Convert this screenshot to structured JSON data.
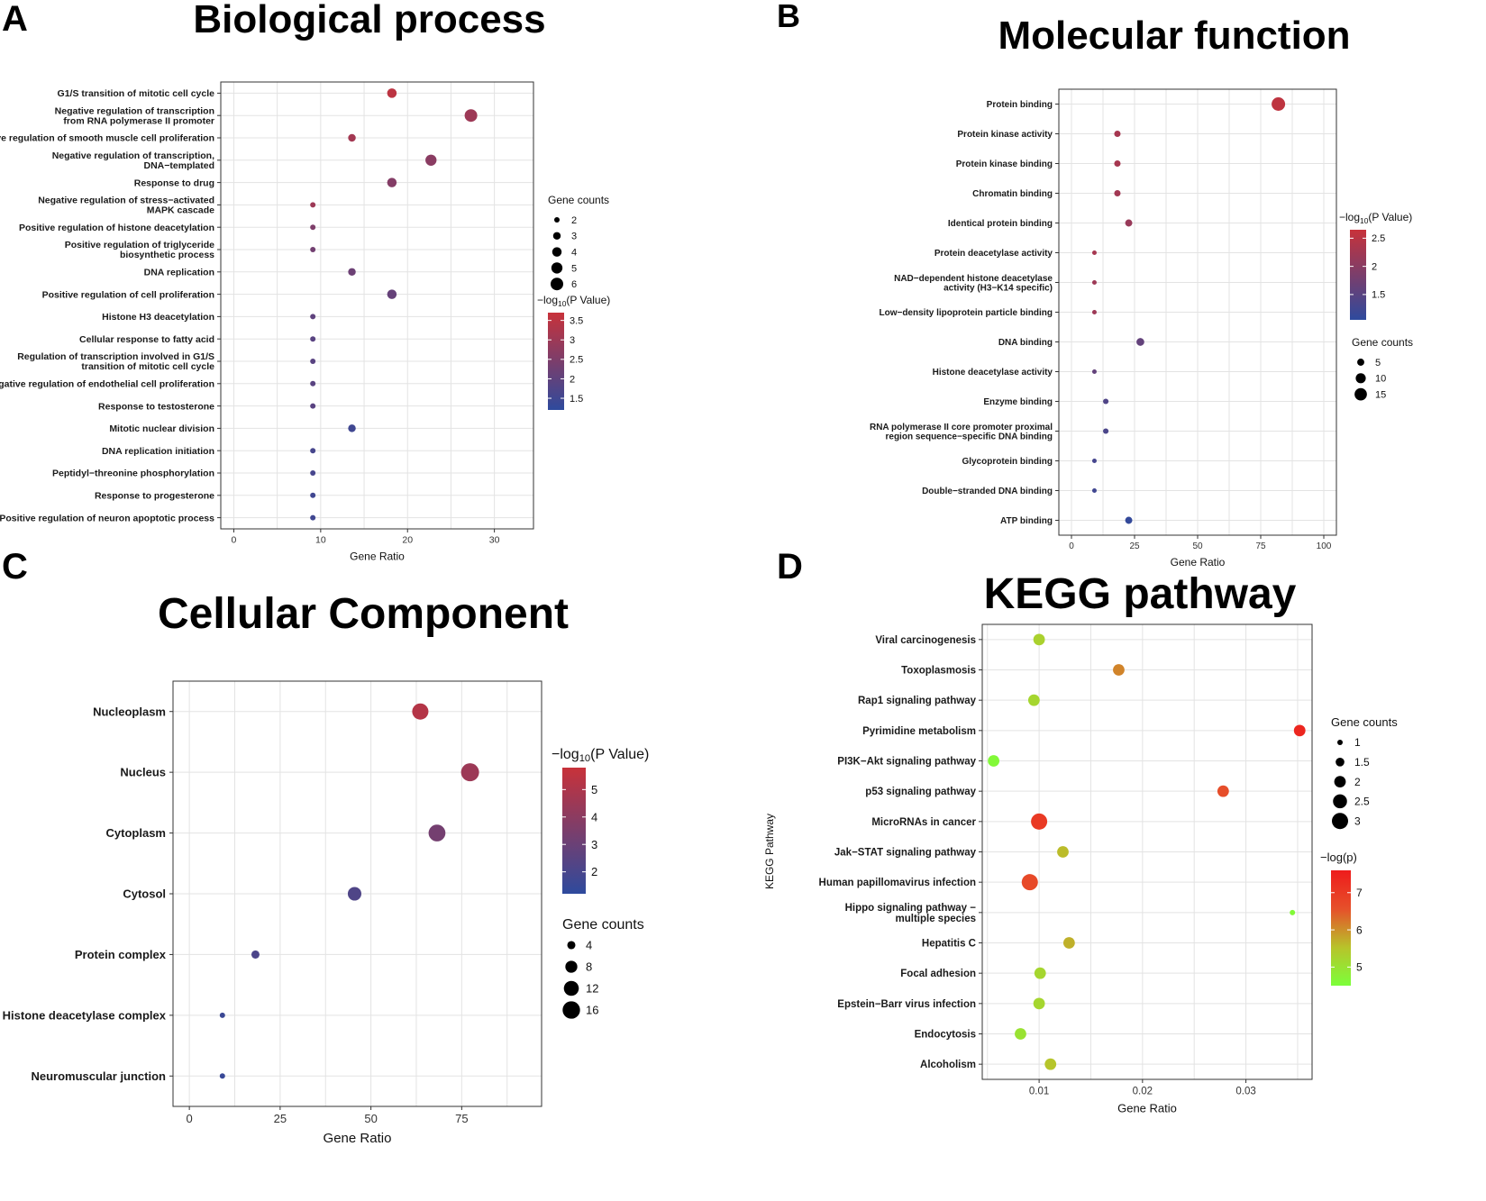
{
  "chart_data": [
    {
      "panel": "A",
      "type": "scatter",
      "title": "Biological process",
      "xlabel": "Gene Ratio",
      "ylabel": "",
      "xlim": [
        -1.5,
        34.5
      ],
      "xticks": [
        0,
        10,
        20,
        30
      ],
      "size_legend": {
        "title": "Gene counts",
        "values": [
          2,
          3,
          4,
          5,
          6
        ]
      },
      "color_legend": {
        "title_pre": "−log",
        "title_sub": "10",
        "title_post": "(P Value)",
        "ticks": [
          3.5,
          3.0,
          2.5,
          2.0,
          1.5
        ],
        "range": [
          1.2,
          3.7
        ],
        "colors": [
          "#2e4a9d",
          "#c8323a"
        ]
      },
      "points": [
        {
          "label": [
            "G1/S transition of mitotic cell cycle"
          ],
          "x": 18.2,
          "count": 4,
          "color_value": 3.5
        },
        {
          "label": [
            "Negative regulation of transcription",
            "from RNA polymerase II promoter"
          ],
          "x": 27.3,
          "count": 6,
          "color_value": 3.0
        },
        {
          "label": [
            "Positive regulation of smooth muscle cell proliferation"
          ],
          "x": 13.6,
          "count": 3,
          "color_value": 3.1
        },
        {
          "label": [
            "Negative regulation of transcription,",
            "DNA−templated"
          ],
          "x": 22.7,
          "count": 5,
          "color_value": 2.7
        },
        {
          "label": [
            "Response to drug"
          ],
          "x": 18.2,
          "count": 4,
          "color_value": 2.6
        },
        {
          "label": [
            "Negative regulation of stress−activated",
            "MAPK cascade"
          ],
          "x": 9.1,
          "count": 2,
          "color_value": 3.0
        },
        {
          "label": [
            "Positive regulation of histone deacetylation"
          ],
          "x": 9.1,
          "count": 2,
          "color_value": 2.5
        },
        {
          "label": [
            "Positive regulation of triglyceride",
            "biosynthetic process"
          ],
          "x": 9.1,
          "count": 2,
          "color_value": 2.3
        },
        {
          "label": [
            "DNA replication"
          ],
          "x": 13.6,
          "count": 3,
          "color_value": 2.2
        },
        {
          "label": [
            "Positive regulation of cell proliferation"
          ],
          "x": 18.2,
          "count": 4,
          "color_value": 2.1
        },
        {
          "label": [
            "Histone H3 deacetylation"
          ],
          "x": 9.1,
          "count": 2,
          "color_value": 2.0
        },
        {
          "label": [
            "Cellular response to fatty acid"
          ],
          "x": 9.1,
          "count": 2,
          "color_value": 1.9
        },
        {
          "label": [
            "Regulation of transcription involved in G1/S",
            "transition of mitotic cell cycle"
          ],
          "x": 9.1,
          "count": 2,
          "color_value": 1.9
        },
        {
          "label": [
            "Negative regulation of endothelial cell proliferation"
          ],
          "x": 9.1,
          "count": 2,
          "color_value": 1.9
        },
        {
          "label": [
            "Response to testosterone"
          ],
          "x": 9.1,
          "count": 2,
          "color_value": 1.9
        },
        {
          "label": [
            "Mitotic nuclear division"
          ],
          "x": 13.6,
          "count": 3,
          "color_value": 1.5
        },
        {
          "label": [
            "DNA replication initiation"
          ],
          "x": 9.1,
          "count": 2,
          "color_value": 1.6
        },
        {
          "label": [
            "Peptidyl−threonine phosphorylation"
          ],
          "x": 9.1,
          "count": 2,
          "color_value": 1.6
        },
        {
          "label": [
            "Response to progesterone"
          ],
          "x": 9.1,
          "count": 2,
          "color_value": 1.5
        },
        {
          "label": [
            "Positive regulation of neuron apoptotic process"
          ],
          "x": 9.1,
          "count": 2,
          "color_value": 1.5
        }
      ]
    },
    {
      "panel": "B",
      "type": "scatter",
      "title": "Molecular function",
      "xlabel": "Gene Ratio",
      "ylabel": "",
      "xlim": [
        -5,
        105
      ],
      "xticks": [
        0,
        25,
        50,
        75,
        100
      ],
      "size_legend": {
        "title": "Gene counts",
        "values": [
          5,
          10,
          15
        ]
      },
      "color_legend": {
        "title_pre": "−log",
        "title_sub": "10",
        "title_post": "(P Value)",
        "ticks": [
          2.5,
          2.0,
          1.5
        ],
        "range": [
          1.05,
          2.65
        ],
        "colors": [
          "#2e4a9d",
          "#c8323a"
        ]
      },
      "points": [
        {
          "label": [
            "Protein binding"
          ],
          "x": 82,
          "count": 18,
          "color_value": 2.55
        },
        {
          "label": [
            "Protein kinase activity"
          ],
          "x": 18.2,
          "count": 4,
          "color_value": 2.3
        },
        {
          "label": [
            "Protein kinase binding"
          ],
          "x": 18.2,
          "count": 4,
          "color_value": 2.3
        },
        {
          "label": [
            "Chromatin binding"
          ],
          "x": 18.2,
          "count": 4,
          "color_value": 2.25
        },
        {
          "label": [
            "Identical protein binding"
          ],
          "x": 22.7,
          "count": 5,
          "color_value": 2.15
        },
        {
          "label": [
            "Protein deacetylase activity"
          ],
          "x": 9.1,
          "count": 2,
          "color_value": 2.3
        },
        {
          "label": [
            "NAD−dependent histone deacetylase",
            "activity (H3−K14 specific)"
          ],
          "x": 9.1,
          "count": 2,
          "color_value": 2.2
        },
        {
          "label": [
            "Low−density lipoprotein particle binding"
          ],
          "x": 9.1,
          "count": 2,
          "color_value": 2.2
        },
        {
          "label": [
            "DNA binding"
          ],
          "x": 27.3,
          "count": 6,
          "color_value": 1.6
        },
        {
          "label": [
            "Histone deacetylase activity"
          ],
          "x": 9.1,
          "count": 2,
          "color_value": 1.6
        },
        {
          "label": [
            "Enzyme binding"
          ],
          "x": 13.6,
          "count": 3,
          "color_value": 1.4
        },
        {
          "label": [
            "RNA polymerase II core promoter proximal",
            "region sequence−specific DNA binding"
          ],
          "x": 13.6,
          "count": 3,
          "color_value": 1.35
        },
        {
          "label": [
            "Glycoprotein binding"
          ],
          "x": 9.1,
          "count": 2,
          "color_value": 1.3
        },
        {
          "label": [
            "Double−stranded DNA binding"
          ],
          "x": 9.1,
          "count": 2,
          "color_value": 1.25
        },
        {
          "label": [
            "ATP binding"
          ],
          "x": 22.7,
          "count": 5,
          "color_value": 1.1
        }
      ]
    },
    {
      "panel": "C",
      "type": "scatter",
      "title": "Cellular Component",
      "xlabel": "Gene Ratio",
      "ylabel": "",
      "xlim": [
        -4.5,
        97
      ],
      "xticks": [
        0,
        25,
        50,
        75
      ],
      "size_legend": {
        "title": "Gene counts",
        "values": [
          4,
          8,
          12,
          16
        ]
      },
      "color_legend": {
        "title_pre": "−log",
        "title_sub": "10",
        "title_post": "(P Value)",
        "ticks": [
          5,
          4,
          3,
          2
        ],
        "range": [
          1.2,
          5.8
        ],
        "colors": [
          "#2e4a9d",
          "#c8323a"
        ]
      },
      "points": [
        {
          "label": [
            "Nucleoplasm"
          ],
          "x": 63.6,
          "count": 14,
          "color_value": 5.2
        },
        {
          "label": [
            "Nucleus"
          ],
          "x": 77.3,
          "count": 17,
          "color_value": 4.5
        },
        {
          "label": [
            "Cytoplasm"
          ],
          "x": 68.2,
          "count": 15,
          "color_value": 3.3
        },
        {
          "label": [
            "Cytosol"
          ],
          "x": 45.5,
          "count": 10,
          "color_value": 2.2
        },
        {
          "label": [
            "Protein complex"
          ],
          "x": 18.2,
          "count": 4,
          "color_value": 2.1
        },
        {
          "label": [
            "Histone deacetylase complex"
          ],
          "x": 9.1,
          "count": 2,
          "color_value": 1.6
        },
        {
          "label": [
            "Neuromuscular junction"
          ],
          "x": 9.1,
          "count": 2,
          "color_value": 1.5
        }
      ]
    },
    {
      "panel": "D",
      "type": "scatter",
      "title": "KEGG pathway",
      "xlabel": "Gene Ratio",
      "ylabel": "KEGG Pathway",
      "xlim": [
        0.0045,
        0.0364
      ],
      "xticks": [
        0.01,
        0.02,
        0.03
      ],
      "xtick_labels": [
        "0.01",
        "0.02",
        "0.03"
      ],
      "size_legend": {
        "title": "Gene counts",
        "values": [
          1.0,
          1.5,
          2.0,
          2.5,
          3.0
        ]
      },
      "color_legend": {
        "title_pre": "−log(p)",
        "title_sub": "",
        "title_post": "",
        "ticks": [
          7,
          6,
          5
        ],
        "range": [
          4.5,
          7.6
        ],
        "colors": [
          "#7cff3a",
          "#b8c32a",
          "#e6502a",
          "#ee1c1c"
        ]
      },
      "points": [
        {
          "label": [
            "Viral carcinogenesis"
          ],
          "x": 0.01,
          "count": 2,
          "color_value": 5.3
        },
        {
          "label": [
            "Toxoplasmosis"
          ],
          "x": 0.0177,
          "count": 2,
          "color_value": 6.1
        },
        {
          "label": [
            "Rap1 signaling pathway"
          ],
          "x": 0.0095,
          "count": 2,
          "color_value": 5.2
        },
        {
          "label": [
            "Pyrimidine metabolism"
          ],
          "x": 0.0352,
          "count": 2,
          "color_value": 7.4
        },
        {
          "label": [
            "PI3K−Akt signaling pathway"
          ],
          "x": 0.0056,
          "count": 2,
          "color_value": 4.6
        },
        {
          "label": [
            "p53 signaling pathway"
          ],
          "x": 0.0278,
          "count": 2,
          "color_value": 6.6
        },
        {
          "label": [
            "MicroRNAs in cancer"
          ],
          "x": 0.01,
          "count": 3,
          "color_value": 7.0
        },
        {
          "label": [
            "Jak−STAT signaling pathway"
          ],
          "x": 0.0123,
          "count": 2,
          "color_value": 5.6
        },
        {
          "label": [
            "Human papillomavirus infection"
          ],
          "x": 0.0091,
          "count": 3,
          "color_value": 6.7
        },
        {
          "label": [
            "Hippo signaling pathway −",
            "multiple species"
          ],
          "x": 0.0345,
          "count": 1,
          "color_value": 4.6
        },
        {
          "label": [
            "Hepatitis C"
          ],
          "x": 0.0129,
          "count": 2,
          "color_value": 5.7
        },
        {
          "label": [
            "Focal adhesion"
          ],
          "x": 0.0101,
          "count": 2,
          "color_value": 5.2
        },
        {
          "label": [
            "Epstein−Barr virus infection"
          ],
          "x": 0.01,
          "count": 2,
          "color_value": 5.2
        },
        {
          "label": [
            "Endocytosis"
          ],
          "x": 0.0082,
          "count": 2,
          "color_value": 5.0
        },
        {
          "label": [
            "Alcoholism"
          ],
          "x": 0.0111,
          "count": 2,
          "color_value": 5.5
        }
      ]
    }
  ]
}
